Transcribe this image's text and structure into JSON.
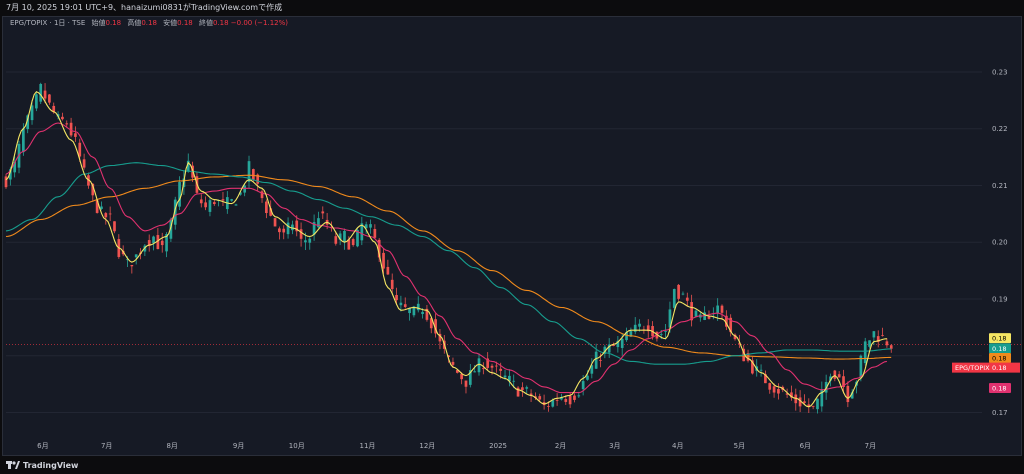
{
  "header": {
    "attribution": "7月 10, 2025 19:01 UTC+9、hanaizumi0831がTradingView.comで作成"
  },
  "legend": {
    "symbol": "EPG/TOPIX · 1日 · TSE",
    "open_label": "始値",
    "open_value": "0.18",
    "high_label": "高値",
    "high_value": "0.18",
    "low_label": "安値",
    "low_value": "0.18",
    "close_label": "終値",
    "close_value": "0.18 −0.00 (−1.12%)"
  },
  "footer": {
    "brand": "TradingView"
  },
  "colors": {
    "up": "#26a69a",
    "down": "#ef5350",
    "ma_short": "#f5e663",
    "ma_mid": "#e0316f",
    "ma_long1": "#179d8e",
    "ma_long2": "#f08a1c",
    "grid": "#222633",
    "axis_text": "#b2b5be"
  },
  "chart_data": {
    "type": "candlestick",
    "title": "",
    "symbol": "EPG/TOPIX",
    "interval": "1日",
    "exchange": "TSE",
    "ylim": [
      0.1655,
      0.2388
    ],
    "y_ticks": [
      "0.23",
      "0.22",
      "0.21",
      "0.20",
      "0.19",
      "0.18",
      "0.17"
    ],
    "y_tick_values": [
      0.23,
      0.22,
      0.21,
      0.2,
      0.19,
      0.18,
      0.17
    ],
    "x_ticks": [
      "6月",
      "7月",
      "8月",
      "9月",
      "10月",
      "11月",
      "12月",
      "2025",
      "2月",
      "3月",
      "4月",
      "5月",
      "6月",
      "7月"
    ],
    "x_tick_positions": [
      8.5,
      23.2,
      38.3,
      53.6,
      67.0,
      83.3,
      97.1,
      113.4,
      127.8,
      140.3,
      154.8,
      169.0,
      184.2,
      199.2
    ],
    "x_range": [
      0,
      218
    ],
    "grid": false,
    "price_labels": [
      {
        "value": "0.18",
        "price": 0.1831,
        "color": "#f5e663",
        "text_color": "#000000"
      },
      {
        "value": "0.18",
        "price": 0.1813,
        "color": "#179d8e",
        "text_color": "#ffffff"
      },
      {
        "value": "0.18",
        "price": 0.1796,
        "color": "#f08a1c",
        "text_color": "#000000"
      },
      {
        "value": "EPG/TOPIX",
        "value2": "0.18",
        "price": 0.1779,
        "color": "#f23645",
        "text_color": "#ffffff"
      },
      {
        "value": "0.18",
        "price": 0.1743,
        "color": "#e0316f",
        "text_color": "#ffffff"
      }
    ],
    "ohlc_anchors": [
      [
        0,
        0.211
      ],
      [
        2,
        0.2135
      ],
      [
        4,
        0.2195
      ],
      [
        6,
        0.223
      ],
      [
        8,
        0.227
      ],
      [
        10,
        0.224
      ],
      [
        12,
        0.2215
      ],
      [
        14,
        0.221
      ],
      [
        16,
        0.2175
      ],
      [
        18,
        0.212
      ],
      [
        20,
        0.2075
      ],
      [
        22,
        0.205
      ],
      [
        24,
        0.204
      ],
      [
        26,
        0.1985
      ],
      [
        28,
        0.196
      ],
      [
        30,
        0.1975
      ],
      [
        32,
        0.2
      ],
      [
        34,
        0.201
      ],
      [
        36,
        0.1985
      ],
      [
        38,
        0.203
      ],
      [
        40,
        0.21
      ],
      [
        42,
        0.214
      ],
      [
        44,
        0.208
      ],
      [
        46,
        0.206
      ],
      [
        48,
        0.2075
      ],
      [
        50,
        0.2065
      ],
      [
        52,
        0.207
      ],
      [
        54,
        0.2085
      ],
      [
        56,
        0.213
      ],
      [
        58,
        0.2095
      ],
      [
        60,
        0.206
      ],
      [
        62,
        0.203
      ],
      [
        64,
        0.201
      ],
      [
        66,
        0.2035
      ],
      [
        68,
        0.2
      ],
      [
        70,
        0.201
      ],
      [
        72,
        0.205
      ],
      [
        74,
        0.203
      ],
      [
        76,
        0.2
      ],
      [
        78,
        0.201
      ],
      [
        80,
        0.199
      ],
      [
        82,
        0.203
      ],
      [
        84,
        0.202
      ],
      [
        86,
        0.1985
      ],
      [
        88,
        0.1935
      ],
      [
        90,
        0.189
      ],
      [
        92,
        0.188
      ],
      [
        94,
        0.1875
      ],
      [
        96,
        0.1885
      ],
      [
        98,
        0.186
      ],
      [
        100,
        0.182
      ],
      [
        102,
        0.179
      ],
      [
        104,
        0.177
      ],
      [
        106,
        0.1755
      ],
      [
        108,
        0.1775
      ],
      [
        110,
        0.179
      ],
      [
        112,
        0.178
      ],
      [
        114,
        0.1765
      ],
      [
        116,
        0.1755
      ],
      [
        118,
        0.174
      ],
      [
        120,
        0.1735
      ],
      [
        122,
        0.1725
      ],
      [
        124,
        0.171
      ],
      [
        126,
        0.172
      ],
      [
        128,
        0.173
      ],
      [
        130,
        0.1725
      ],
      [
        132,
        0.174
      ],
      [
        134,
        0.1765
      ],
      [
        136,
        0.1795
      ],
      [
        138,
        0.181
      ],
      [
        140,
        0.1815
      ],
      [
        142,
        0.1825
      ],
      [
        144,
        0.184
      ],
      [
        146,
        0.185
      ],
      [
        148,
        0.1855
      ],
      [
        150,
        0.1835
      ],
      [
        152,
        0.1845
      ],
      [
        154,
        0.192
      ],
      [
        156,
        0.1905
      ],
      [
        158,
        0.1875
      ],
      [
        160,
        0.186
      ],
      [
        162,
        0.1875
      ],
      [
        164,
        0.1885
      ],
      [
        166,
        0.186
      ],
      [
        168,
        0.1825
      ],
      [
        170,
        0.18
      ],
      [
        172,
        0.178
      ],
      [
        174,
        0.1765
      ],
      [
        176,
        0.175
      ],
      [
        178,
        0.174
      ],
      [
        180,
        0.173
      ],
      [
        182,
        0.172
      ],
      [
        184,
        0.1715
      ],
      [
        186,
        0.1705
      ],
      [
        188,
        0.173
      ],
      [
        190,
        0.1775
      ],
      [
        192,
        0.1765
      ],
      [
        194,
        0.173
      ],
      [
        196,
        0.176
      ],
      [
        198,
        0.182
      ],
      [
        200,
        0.184
      ],
      [
        202,
        0.183
      ],
      [
        204,
        0.182
      ]
    ],
    "ma_short_anchors": [
      [
        0,
        0.211
      ],
      [
        4,
        0.22
      ],
      [
        7,
        0.2265
      ],
      [
        11,
        0.223
      ],
      [
        15,
        0.218
      ],
      [
        19,
        0.211
      ],
      [
        23,
        0.204
      ],
      [
        26,
        0.199
      ],
      [
        29,
        0.1965
      ],
      [
        33,
        0.1995
      ],
      [
        37,
        0.201
      ],
      [
        40,
        0.2075
      ],
      [
        42,
        0.214
      ],
      [
        45,
        0.209
      ],
      [
        48,
        0.2075
      ],
      [
        52,
        0.2068
      ],
      [
        56,
        0.211
      ],
      [
        59,
        0.2095
      ],
      [
        62,
        0.2045
      ],
      [
        66,
        0.2025
      ],
      [
        70,
        0.201
      ],
      [
        74,
        0.2035
      ],
      [
        78,
        0.2
      ],
      [
        82,
        0.203
      ],
      [
        85,
        0.2
      ],
      [
        88,
        0.192
      ],
      [
        91,
        0.188
      ],
      [
        94,
        0.1885
      ],
      [
        97,
        0.188
      ],
      [
        100,
        0.1835
      ],
      [
        103,
        0.178
      ],
      [
        106,
        0.1765
      ],
      [
        109,
        0.1785
      ],
      [
        112,
        0.177
      ],
      [
        115,
        0.176
      ],
      [
        118,
        0.174
      ],
      [
        121,
        0.173
      ],
      [
        124,
        0.1715
      ],
      [
        127,
        0.1725
      ],
      [
        130,
        0.173
      ],
      [
        133,
        0.176
      ],
      [
        136,
        0.1795
      ],
      [
        140,
        0.182
      ],
      [
        144,
        0.1845
      ],
      [
        148,
        0.1845
      ],
      [
        152,
        0.183
      ],
      [
        155,
        0.1895
      ],
      [
        158,
        0.1885
      ],
      [
        162,
        0.187
      ],
      [
        165,
        0.1865
      ],
      [
        168,
        0.1835
      ],
      [
        171,
        0.1795
      ],
      [
        174,
        0.177
      ],
      [
        178,
        0.1745
      ],
      [
        182,
        0.1725
      ],
      [
        185,
        0.171
      ],
      [
        188,
        0.1735
      ],
      [
        191,
        0.1765
      ],
      [
        194,
        0.1725
      ],
      [
        197,
        0.176
      ],
      [
        200,
        0.1825
      ],
      [
        203,
        0.183
      ]
    ],
    "ma_mid_anchors": [
      [
        0,
        0.212
      ],
      [
        4,
        0.216
      ],
      [
        8,
        0.2195
      ],
      [
        12,
        0.221
      ],
      [
        16,
        0.2195
      ],
      [
        20,
        0.215
      ],
      [
        24,
        0.2095
      ],
      [
        28,
        0.2045
      ],
      [
        32,
        0.202
      ],
      [
        36,
        0.203
      ],
      [
        40,
        0.205
      ],
      [
        44,
        0.2085
      ],
      [
        48,
        0.209
      ],
      [
        52,
        0.2095
      ],
      [
        56,
        0.2095
      ],
      [
        60,
        0.2085
      ],
      [
        64,
        0.206
      ],
      [
        68,
        0.204
      ],
      [
        72,
        0.203
      ],
      [
        76,
        0.2025
      ],
      [
        80,
        0.202
      ],
      [
        84,
        0.201
      ],
      [
        88,
        0.1985
      ],
      [
        92,
        0.194
      ],
      [
        96,
        0.1905
      ],
      [
        100,
        0.187
      ],
      [
        104,
        0.183
      ],
      [
        108,
        0.1805
      ],
      [
        112,
        0.179
      ],
      [
        116,
        0.1775
      ],
      [
        120,
        0.176
      ],
      [
        124,
        0.1745
      ],
      [
        128,
        0.1735
      ],
      [
        132,
        0.1735
      ],
      [
        136,
        0.1755
      ],
      [
        140,
        0.1785
      ],
      [
        144,
        0.181
      ],
      [
        148,
        0.183
      ],
      [
        152,
        0.1845
      ],
      [
        156,
        0.186
      ],
      [
        160,
        0.187
      ],
      [
        164,
        0.1875
      ],
      [
        168,
        0.186
      ],
      [
        172,
        0.1835
      ],
      [
        176,
        0.1805
      ],
      [
        180,
        0.1775
      ],
      [
        184,
        0.175
      ],
      [
        188,
        0.174
      ],
      [
        192,
        0.1745
      ],
      [
        196,
        0.176
      ],
      [
        200,
        0.178
      ],
      [
        203,
        0.179
      ]
    ],
    "ma_long1_anchors": [
      [
        0,
        0.202
      ],
      [
        6,
        0.204
      ],
      [
        12,
        0.208
      ],
      [
        18,
        0.212
      ],
      [
        24,
        0.2135
      ],
      [
        30,
        0.214
      ],
      [
        36,
        0.2135
      ],
      [
        42,
        0.2125
      ],
      [
        48,
        0.212
      ],
      [
        54,
        0.2115
      ],
      [
        60,
        0.2105
      ],
      [
        66,
        0.209
      ],
      [
        72,
        0.2075
      ],
      [
        78,
        0.206
      ],
      [
        84,
        0.2045
      ],
      [
        90,
        0.203
      ],
      [
        96,
        0.201
      ],
      [
        102,
        0.1985
      ],
      [
        108,
        0.1955
      ],
      [
        114,
        0.192
      ],
      [
        120,
        0.189
      ],
      [
        126,
        0.186
      ],
      [
        132,
        0.183
      ],
      [
        138,
        0.1805
      ],
      [
        144,
        0.179
      ],
      [
        150,
        0.1785
      ],
      [
        156,
        0.1785
      ],
      [
        162,
        0.179
      ],
      [
        168,
        0.18
      ],
      [
        174,
        0.1805
      ],
      [
        180,
        0.181
      ],
      [
        186,
        0.181
      ],
      [
        192,
        0.1808
      ],
      [
        198,
        0.1808
      ],
      [
        204,
        0.1812
      ]
    ],
    "ma_long2_anchors": [
      [
        0,
        0.201
      ],
      [
        8,
        0.204
      ],
      [
        16,
        0.2065
      ],
      [
        24,
        0.208
      ],
      [
        32,
        0.2095
      ],
      [
        40,
        0.2108
      ],
      [
        48,
        0.2115
      ],
      [
        56,
        0.2118
      ],
      [
        64,
        0.211
      ],
      [
        72,
        0.2098
      ],
      [
        80,
        0.208
      ],
      [
        88,
        0.2055
      ],
      [
        96,
        0.202
      ],
      [
        104,
        0.1985
      ],
      [
        112,
        0.195
      ],
      [
        120,
        0.1915
      ],
      [
        128,
        0.1885
      ],
      [
        136,
        0.186
      ],
      [
        144,
        0.1835
      ],
      [
        152,
        0.1815
      ],
      [
        160,
        0.1805
      ],
      [
        168,
        0.18
      ],
      [
        176,
        0.1798
      ],
      [
        184,
        0.1796
      ],
      [
        192,
        0.1794
      ],
      [
        198,
        0.1795
      ],
      [
        204,
        0.1797
      ]
    ]
  }
}
